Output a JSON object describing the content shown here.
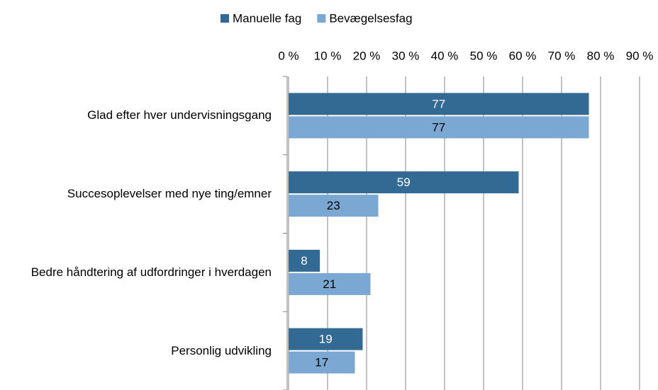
{
  "chart_data": {
    "type": "hbar",
    "categories": [
      "Glad efter hver undervisningsgang",
      "Succesoplevelser med nye ting/emner",
      "Bedre håndtering af udfordringer i hverdagen",
      "Personlig udvikling"
    ],
    "series": [
      {
        "name": "Manuelle fag",
        "color": "#336a93",
        "values": [
          77,
          59,
          8,
          19
        ]
      },
      {
        "name": "Bevægelsesfag",
        "color": "#7ba7d3",
        "values": [
          77,
          23,
          21,
          17
        ]
      }
    ],
    "xlim": [
      0,
      90
    ],
    "xticks": [
      {
        "value": 0,
        "label": "0 %"
      },
      {
        "value": 10,
        "label": "10 %"
      },
      {
        "value": 20,
        "label": "20 %"
      },
      {
        "value": 30,
        "label": "30 %"
      },
      {
        "value": 40,
        "label": "40 %"
      },
      {
        "value": 50,
        "label": "50 %"
      },
      {
        "value": 60,
        "label": "60 %"
      },
      {
        "value": 70,
        "label": "70 %"
      },
      {
        "value": 80,
        "label": "80 %"
      },
      {
        "value": 90,
        "label": "90 %"
      }
    ],
    "grid": true,
    "legend": "top"
  }
}
